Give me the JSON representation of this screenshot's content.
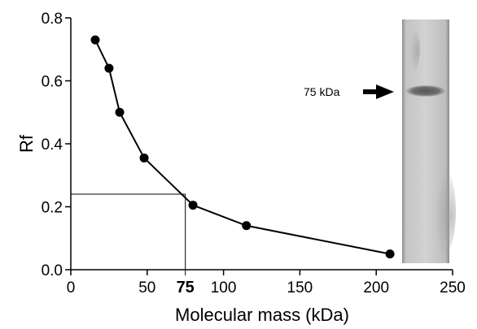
{
  "chart_data": {
    "type": "line",
    "xlabel": "Molecular mass (kDa)",
    "ylabel": "Rf",
    "xlim": [
      0,
      250
    ],
    "ylim": [
      0,
      0.8
    ],
    "x_ticks": [
      "0",
      "50",
      "100",
      "150",
      "200",
      "250"
    ],
    "y_ticks": [
      "0.0",
      "0.2",
      "0.4",
      "0.6",
      "0.8"
    ],
    "series": [
      {
        "x": [
          16,
          25,
          32,
          48,
          80,
          115,
          209
        ],
        "y": [
          0.73,
          0.64,
          0.5,
          0.355,
          0.205,
          0.14,
          0.05
        ]
      }
    ],
    "reference_line": {
      "x": 75,
      "y": 0.24
    },
    "highlight_label": "75",
    "grid": false,
    "colors": {
      "line": "#000000",
      "marker": "#000000",
      "gel_background": "#c8c8c8",
      "band": "#6a6a6a"
    }
  },
  "gel": {
    "band_label": "75 kDa",
    "band_rf": 0.56,
    "arrow_icon": "right-arrow-icon"
  }
}
